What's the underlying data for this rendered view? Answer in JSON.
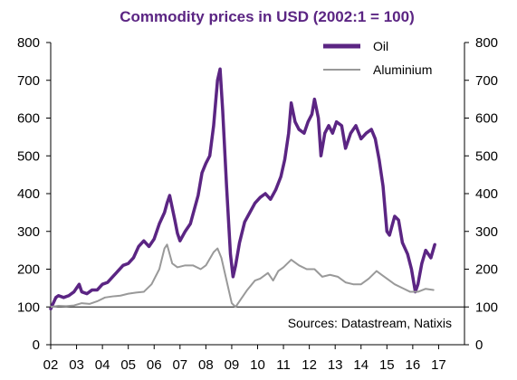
{
  "chart_data": {
    "type": "line",
    "title": "Commodity prices in USD (2002:1 = 100)",
    "x_tick_labels": [
      "02",
      "03",
      "04",
      "05",
      "06",
      "07",
      "08",
      "09",
      "10",
      "11",
      "12",
      "13",
      "14",
      "15",
      "16",
      "17"
    ],
    "y_tick_labels": [
      "0",
      "100",
      "200",
      "300",
      "400",
      "500",
      "600",
      "700",
      "800"
    ],
    "xlim": [
      2002,
      2018
    ],
    "ylim": [
      0,
      800
    ],
    "reference_line": 100,
    "legend_position": "top-right",
    "source": "Sources: Datastream, Natixis",
    "colors": {
      "oil": "#5b2583",
      "aluminium": "#999999",
      "title": "#5b2583"
    },
    "series": [
      {
        "name": "Oil",
        "points": [
          [
            2002.0,
            95
          ],
          [
            2002.1,
            110
          ],
          [
            2002.2,
            125
          ],
          [
            2002.3,
            130
          ],
          [
            2002.5,
            125
          ],
          [
            2002.7,
            130
          ],
          [
            2002.9,
            140
          ],
          [
            2003.0,
            150
          ],
          [
            2003.1,
            160
          ],
          [
            2003.2,
            140
          ],
          [
            2003.4,
            135
          ],
          [
            2003.6,
            145
          ],
          [
            2003.8,
            145
          ],
          [
            2004.0,
            160
          ],
          [
            2004.2,
            165
          ],
          [
            2004.4,
            180
          ],
          [
            2004.6,
            195
          ],
          [
            2004.8,
            210
          ],
          [
            2005.0,
            215
          ],
          [
            2005.2,
            230
          ],
          [
            2005.4,
            260
          ],
          [
            2005.6,
            275
          ],
          [
            2005.8,
            260
          ],
          [
            2006.0,
            280
          ],
          [
            2006.2,
            320
          ],
          [
            2006.4,
            350
          ],
          [
            2006.5,
            375
          ],
          [
            2006.6,
            395
          ],
          [
            2006.8,
            330
          ],
          [
            2006.9,
            295
          ],
          [
            2007.0,
            275
          ],
          [
            2007.2,
            300
          ],
          [
            2007.4,
            320
          ],
          [
            2007.5,
            345
          ],
          [
            2007.7,
            395
          ],
          [
            2007.85,
            455
          ],
          [
            2008.0,
            480
          ],
          [
            2008.15,
            500
          ],
          [
            2008.3,
            580
          ],
          [
            2008.45,
            700
          ],
          [
            2008.55,
            730
          ],
          [
            2008.65,
            620
          ],
          [
            2008.8,
            420
          ],
          [
            2008.95,
            240
          ],
          [
            2009.05,
            180
          ],
          [
            2009.15,
            210
          ],
          [
            2009.3,
            270
          ],
          [
            2009.5,
            325
          ],
          [
            2009.7,
            350
          ],
          [
            2009.9,
            375
          ],
          [
            2010.1,
            390
          ],
          [
            2010.3,
            400
          ],
          [
            2010.5,
            385
          ],
          [
            2010.7,
            410
          ],
          [
            2010.9,
            445
          ],
          [
            2011.05,
            490
          ],
          [
            2011.2,
            560
          ],
          [
            2011.3,
            640
          ],
          [
            2011.45,
            590
          ],
          [
            2011.6,
            570
          ],
          [
            2011.8,
            560
          ],
          [
            2011.95,
            590
          ],
          [
            2012.1,
            610
          ],
          [
            2012.2,
            650
          ],
          [
            2012.35,
            600
          ],
          [
            2012.45,
            500
          ],
          [
            2012.6,
            560
          ],
          [
            2012.75,
            580
          ],
          [
            2012.9,
            560
          ],
          [
            2013.05,
            590
          ],
          [
            2013.25,
            580
          ],
          [
            2013.4,
            520
          ],
          [
            2013.6,
            560
          ],
          [
            2013.8,
            580
          ],
          [
            2014.0,
            545
          ],
          [
            2014.2,
            560
          ],
          [
            2014.4,
            570
          ],
          [
            2014.55,
            545
          ],
          [
            2014.7,
            490
          ],
          [
            2014.85,
            420
          ],
          [
            2015.0,
            300
          ],
          [
            2015.1,
            290
          ],
          [
            2015.3,
            340
          ],
          [
            2015.45,
            330
          ],
          [
            2015.6,
            270
          ],
          [
            2015.8,
            240
          ],
          [
            2015.95,
            200
          ],
          [
            2016.1,
            140
          ],
          [
            2016.2,
            160
          ],
          [
            2016.35,
            215
          ],
          [
            2016.5,
            250
          ],
          [
            2016.7,
            230
          ],
          [
            2016.85,
            265
          ]
        ]
      },
      {
        "name": "Aluminium",
        "points": [
          [
            2002.0,
            100
          ],
          [
            2002.3,
            103
          ],
          [
            2002.6,
            102
          ],
          [
            2002.9,
            104
          ],
          [
            2003.2,
            110
          ],
          [
            2003.5,
            108
          ],
          [
            2003.8,
            115
          ],
          [
            2004.1,
            125
          ],
          [
            2004.4,
            128
          ],
          [
            2004.7,
            130
          ],
          [
            2005.0,
            135
          ],
          [
            2005.3,
            138
          ],
          [
            2005.6,
            140
          ],
          [
            2005.9,
            160
          ],
          [
            2006.2,
            200
          ],
          [
            2006.4,
            255
          ],
          [
            2006.5,
            265
          ],
          [
            2006.7,
            215
          ],
          [
            2006.9,
            205
          ],
          [
            2007.2,
            210
          ],
          [
            2007.5,
            210
          ],
          [
            2007.8,
            200
          ],
          [
            2008.0,
            210
          ],
          [
            2008.3,
            245
          ],
          [
            2008.45,
            255
          ],
          [
            2008.6,
            230
          ],
          [
            2008.8,
            170
          ],
          [
            2009.0,
            110
          ],
          [
            2009.15,
            100
          ],
          [
            2009.3,
            115
          ],
          [
            2009.6,
            145
          ],
          [
            2009.9,
            170
          ],
          [
            2010.1,
            175
          ],
          [
            2010.4,
            190
          ],
          [
            2010.6,
            170
          ],
          [
            2010.8,
            195
          ],
          [
            2011.0,
            205
          ],
          [
            2011.3,
            225
          ],
          [
            2011.6,
            210
          ],
          [
            2011.9,
            200
          ],
          [
            2012.2,
            200
          ],
          [
            2012.5,
            180
          ],
          [
            2012.8,
            185
          ],
          [
            2013.1,
            180
          ],
          [
            2013.4,
            165
          ],
          [
            2013.7,
            160
          ],
          [
            2014.0,
            160
          ],
          [
            2014.3,
            175
          ],
          [
            2014.6,
            195
          ],
          [
            2014.8,
            185
          ],
          [
            2015.0,
            175
          ],
          [
            2015.3,
            160
          ],
          [
            2015.6,
            150
          ],
          [
            2015.9,
            140
          ],
          [
            2016.2,
            140
          ],
          [
            2016.5,
            148
          ],
          [
            2016.8,
            145
          ]
        ]
      }
    ]
  }
}
